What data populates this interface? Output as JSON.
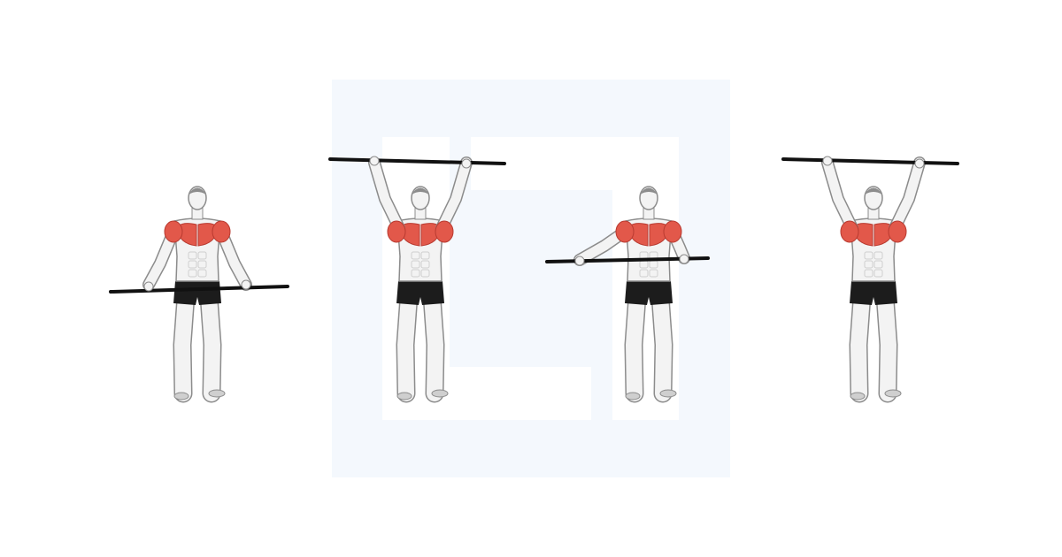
{
  "colors": {
    "background": "#ffffff",
    "watermark": "#f4f8fd",
    "skin_light": "#f3f3f3",
    "skin_mid": "#cfcfcf",
    "skin_dark": "#8c8c8c",
    "muscle_highlight": "#e2584a",
    "muscle_shade": "#b83a30",
    "shorts": "#1c1c1c",
    "bar": "#111111"
  },
  "watermark": {
    "icon": "square-logo-watermark"
  },
  "figures": [
    {
      "pose": "bar-at-hips",
      "targeted_muscles": [
        "front-deltoid",
        "side-deltoid",
        "pectorals"
      ]
    },
    {
      "pose": "bar-overhead",
      "targeted_muscles": [
        "front-deltoid",
        "side-deltoid",
        "pectorals"
      ]
    },
    {
      "pose": "bar-at-hips-rotating",
      "targeted_muscles": [
        "front-deltoid",
        "side-deltoid",
        "pectorals"
      ]
    },
    {
      "pose": "bar-overhead",
      "targeted_muscles": [
        "front-deltoid",
        "side-deltoid",
        "pectorals"
      ]
    }
  ]
}
